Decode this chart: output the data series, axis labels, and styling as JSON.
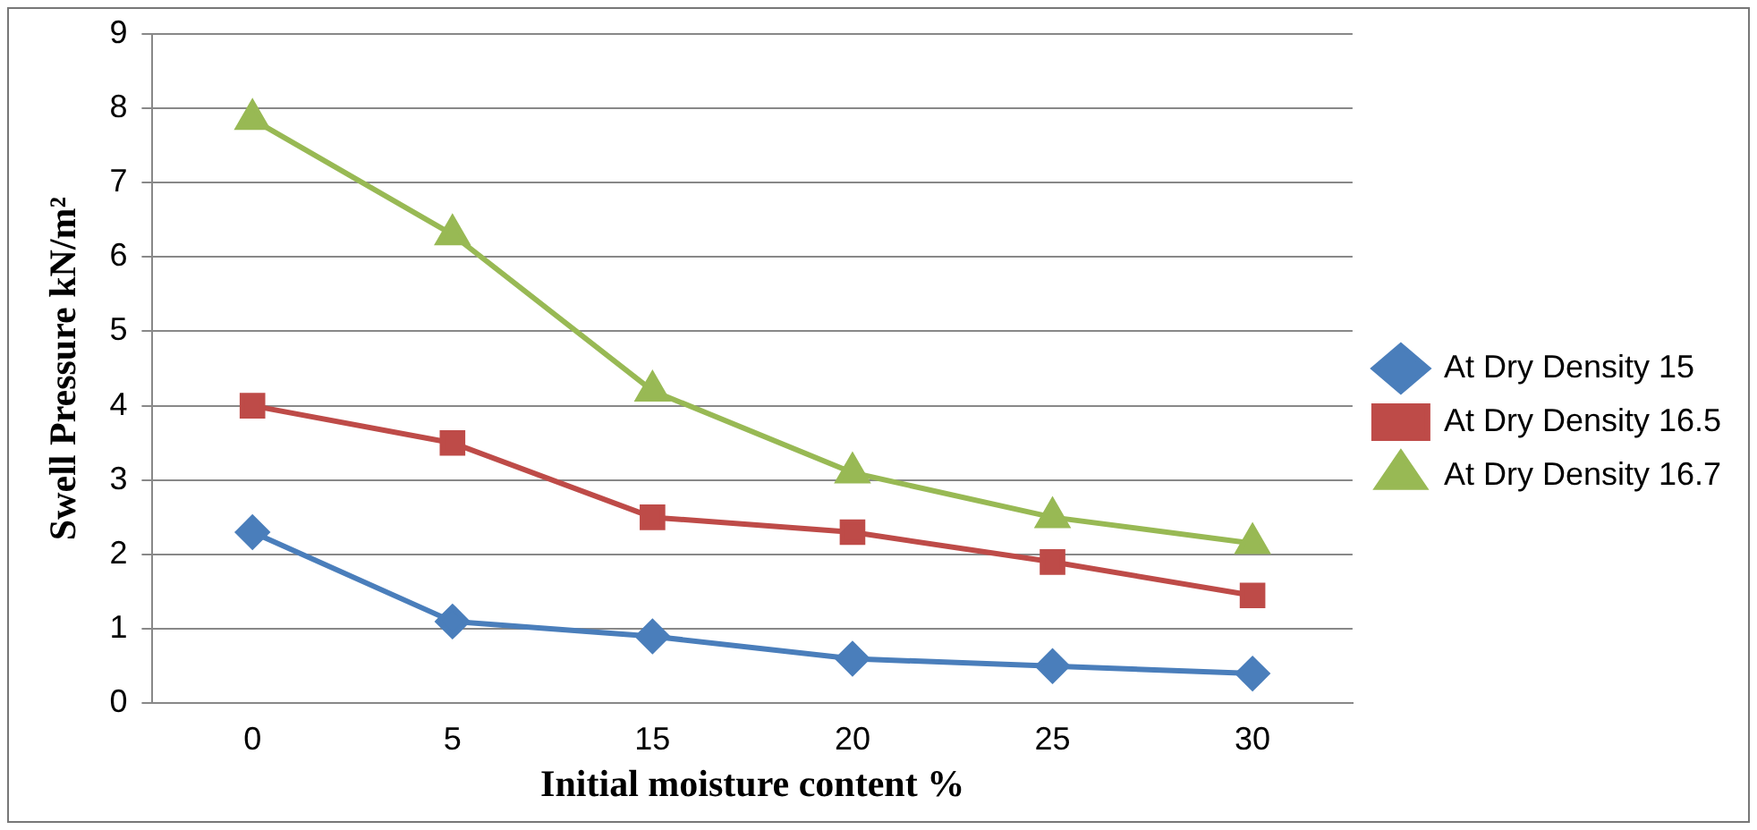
{
  "chart_data": {
    "type": "line",
    "xlabel": "Initial moisture content %",
    "ylabel": "Swell Pressure kN/m²",
    "categories": [
      "0",
      "5",
      "15",
      "20",
      "25",
      "30"
    ],
    "series": [
      {
        "name": "At Dry Density 15",
        "color": "#4a7ebb",
        "marker": "diamond",
        "values": [
          2.3,
          1.1,
          0.9,
          0.6,
          0.5,
          0.4
        ]
      },
      {
        "name": "At Dry Density 16.5",
        "color": "#be4b48",
        "marker": "square",
        "values": [
          4.0,
          3.5,
          2.5,
          2.3,
          1.9,
          1.45
        ]
      },
      {
        "name": "At Dry Density 16.7",
        "color": "#98b954",
        "marker": "triangle",
        "values": [
          7.85,
          6.3,
          4.2,
          3.1,
          2.5,
          2.15
        ]
      }
    ],
    "ylim": [
      0,
      9
    ],
    "yticks": [
      0,
      1,
      2,
      3,
      4,
      5,
      6,
      7,
      8,
      9
    ],
    "grid": "y",
    "legend": "right",
    "line_style": "solid"
  }
}
